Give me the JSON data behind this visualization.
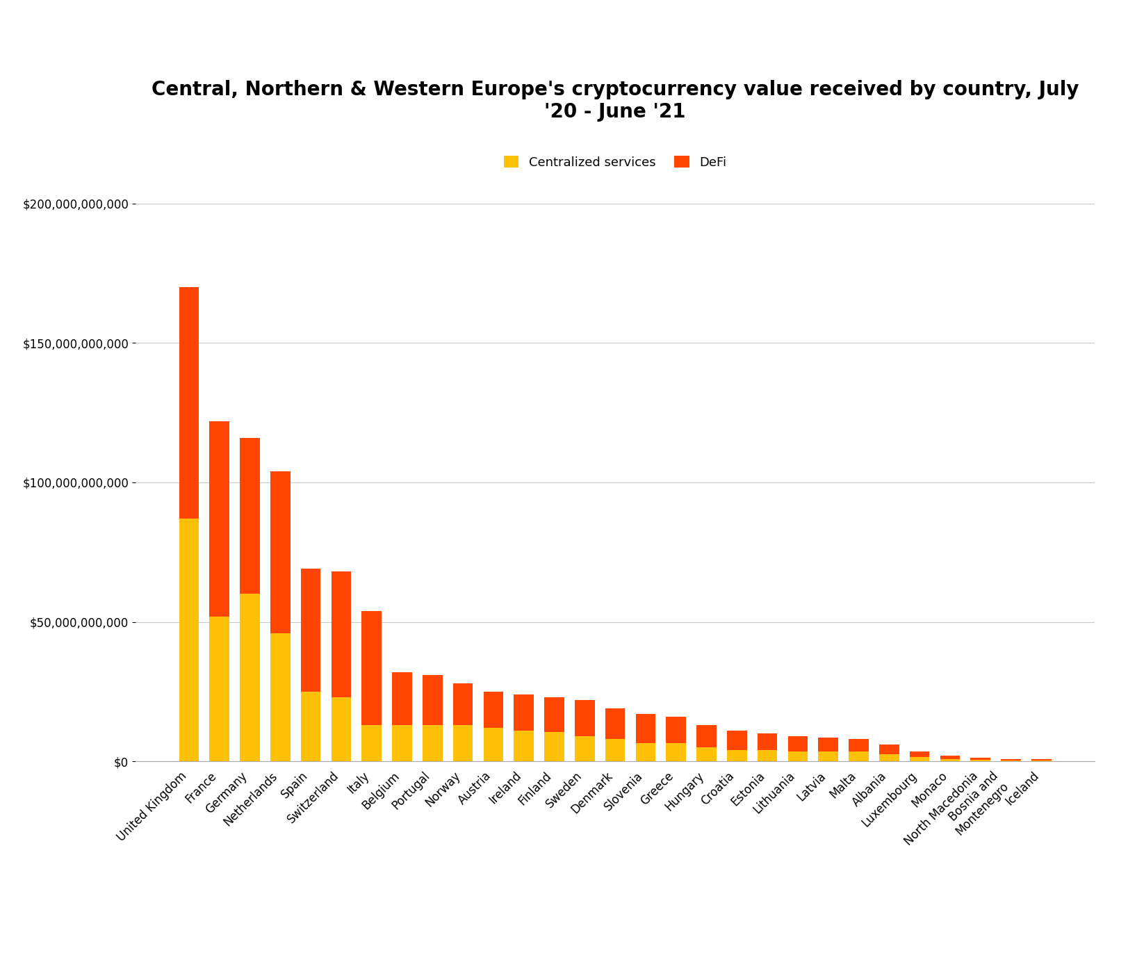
{
  "title": "Central, Northern & Western Europe's cryptocurrency value received by country, July\n'20 - June '21",
  "categories": [
    "United Kingdom",
    "France",
    "Germany",
    "Netherlands",
    "Spain",
    "Switzerland",
    "Italy",
    "Belgium",
    "Portugal",
    "Norway",
    "Austria",
    "Ireland",
    "Finland",
    "Sweden",
    "Denmark",
    "Slovenia",
    "Greece",
    "Hungary",
    "Croatia",
    "Estonia",
    "Lithuania",
    "Latvia",
    "Malta",
    "Albania",
    "Luxembourg",
    "Monaco",
    "North Macedonia",
    "Bosnia and\nMontenegro",
    "Iceland"
  ],
  "centralized_services": [
    87000000000,
    52000000000,
    60000000000,
    46000000000,
    25000000000,
    23000000000,
    13000000000,
    13000000000,
    13000000000,
    13000000000,
    12000000000,
    11000000000,
    10500000000,
    9000000000,
    8000000000,
    6500000000,
    6500000000,
    5000000000,
    4000000000,
    4000000000,
    3500000000,
    3500000000,
    3500000000,
    2500000000,
    1500000000,
    800000000,
    500000000,
    300000000,
    200000000
  ],
  "defi": [
    83000000000,
    70000000000,
    56000000000,
    58000000000,
    44000000000,
    45000000000,
    41000000000,
    19000000000,
    18000000000,
    15000000000,
    13000000000,
    13000000000,
    12500000000,
    13000000000,
    11000000000,
    10500000000,
    9500000000,
    8000000000,
    7000000000,
    6000000000,
    5500000000,
    5000000000,
    4500000000,
    3500000000,
    2000000000,
    1200000000,
    700000000,
    600000000,
    500000000
  ],
  "centralized_color": "#FFC107",
  "defi_color": "#FF4500",
  "background_color": "#FFFFFF",
  "grid_color": "#C8C8C8",
  "ylim": [
    0,
    210000000000
  ],
  "yticks": [
    0,
    50000000000,
    100000000000,
    150000000000,
    200000000000
  ],
  "title_fontsize": 20,
  "tick_fontsize": 12,
  "legend_fontsize": 13
}
